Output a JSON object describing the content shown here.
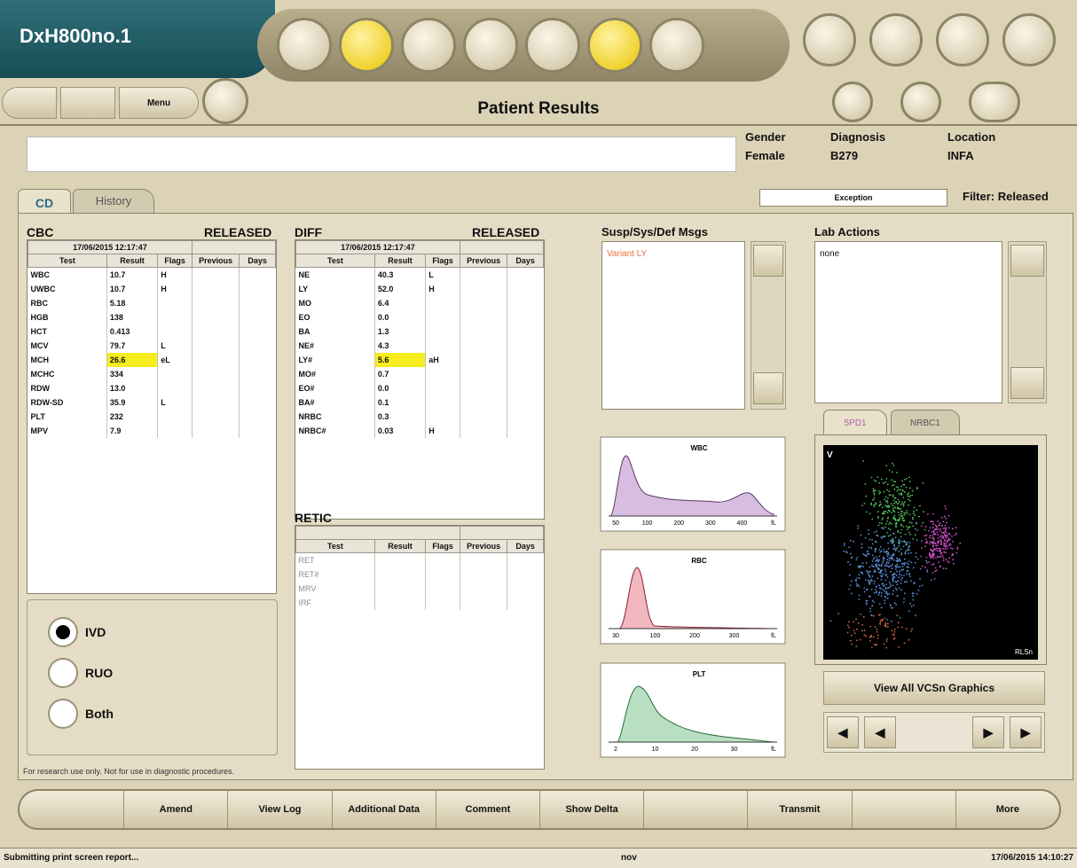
{
  "header": {
    "instrument": "DxH800no.1",
    "menu": "Menu",
    "title": "Patient Results"
  },
  "patient": {
    "fields": [
      {
        "label": "Gender",
        "value": "Female"
      },
      {
        "label": "Diagnosis",
        "value": "B279"
      },
      {
        "label": "Location",
        "value": "INFA"
      }
    ]
  },
  "tabs": [
    "CD",
    "History"
  ],
  "exception": "Exception",
  "filter": "Filter: Released",
  "cbc": {
    "title": "CBC",
    "status": "RELEASED",
    "datetime": "17/06/2015 12:17:47",
    "columns": [
      "Test",
      "Result",
      "Flags",
      "Previous",
      "Days"
    ],
    "rows": [
      [
        "WBC",
        "10.7",
        "H"
      ],
      [
        "UWBC",
        "10.7",
        "H"
      ],
      [
        "RBC",
        "5.18"
      ],
      [
        "HGB",
        "138"
      ],
      [
        "HCT",
        "0.413"
      ],
      [
        "MCV",
        "79.7",
        "L"
      ],
      [
        "MCH",
        "26.6",
        "eL"
      ],
      [
        "MCHC",
        "334"
      ],
      [
        "RDW",
        "13.0"
      ],
      [
        "RDW-SD",
        "35.9",
        "L"
      ],
      [
        "PLT",
        "232"
      ],
      [
        "MPV",
        "7.9"
      ]
    ],
    "highlight": [
      "MCH"
    ]
  },
  "diff": {
    "title": "DIFF",
    "status": "RELEASED",
    "datetime": "17/06/2015 12:17:47",
    "columns": [
      "Test",
      "Result",
      "Flags",
      "Previous",
      "Days"
    ],
    "rows": [
      [
        "NE",
        "40.3",
        "L"
      ],
      [
        "LY",
        "52.0",
        "H"
      ],
      [
        "MO",
        "6.4"
      ],
      [
        "EO",
        "0.0"
      ],
      [
        "BA",
        "1.3"
      ],
      [
        "NE#",
        "4.3"
      ],
      [
        "LY#",
        "5.6",
        "aH"
      ],
      [
        "MO#",
        "0.7"
      ],
      [
        "EO#",
        "0.0"
      ],
      [
        "BA#",
        "0.1"
      ],
      [
        "NRBC",
        "0.3"
      ],
      [
        "NRBC#",
        "0.03",
        "H"
      ]
    ],
    "highlight": [
      "LY#"
    ]
  },
  "retic": {
    "title": "RETIC",
    "columns": [
      "Test",
      "Result",
      "Flags",
      "Previous",
      "Days"
    ],
    "rows": [
      [
        "RET"
      ],
      [
        "RET#"
      ],
      [
        "MRV"
      ],
      [
        "IRF"
      ]
    ]
  },
  "modes": [
    "IVD",
    "RUO",
    "Both"
  ],
  "footnote": "For research use only. Not for use in diagnostic procedures.",
  "messages": {
    "title": "Susp/Sys/Def Msgs",
    "items": [
      "Variant LY"
    ]
  },
  "lab_actions": {
    "title": "Lab Actions",
    "items": [
      "none"
    ]
  },
  "histograms": [
    {
      "title": "WBC",
      "ticks": [
        "50",
        "100",
        "200",
        "300",
        "400",
        "fL"
      ]
    },
    {
      "title": "RBC",
      "ticks": [
        "30",
        "100",
        "200",
        "300",
        "fL"
      ]
    },
    {
      "title": "PLT",
      "ticks": [
        "2",
        "10",
        "20",
        "30",
        "fL"
      ]
    }
  ],
  "scatter": {
    "tabs": [
      "5PD1",
      "NRBC1"
    ],
    "y_label": "V",
    "x_label": "RLSn",
    "button": "View All VCSn Graphics"
  },
  "actions": [
    "Amend",
    "View Log",
    "Additional Data",
    "Comment",
    "Show Delta",
    "Transmit",
    "More"
  ],
  "status": {
    "message": "Submitting print screen report...",
    "user": "nov",
    "datetime": "17/06/2015 14:10:27"
  }
}
